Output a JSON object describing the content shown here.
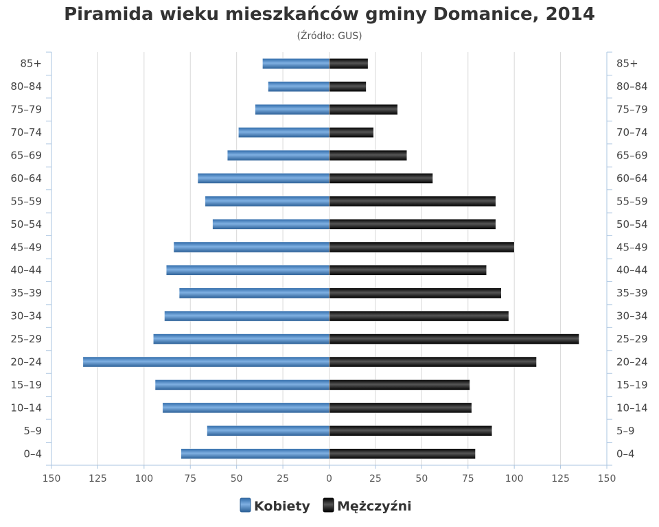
{
  "chart_data": {
    "type": "bar",
    "orientation": "horizontal-pyramid",
    "title": "Piramida wieku mieszkańców gminy Domanice, 2014",
    "subtitle": "(Źródło: GUS)",
    "categories": [
      "0–4",
      "5–9",
      "10–14",
      "15–19",
      "20–24",
      "25–29",
      "30–34",
      "35–39",
      "40–44",
      "45–49",
      "50–54",
      "55–59",
      "60–64",
      "65–69",
      "70–74",
      "75–79",
      "80–84",
      "85+"
    ],
    "series": [
      {
        "name": "Kobiety",
        "color": "#4a87c5",
        "values": [
          80,
          66,
          90,
          94,
          133,
          95,
          89,
          81,
          88,
          84,
          63,
          67,
          71,
          55,
          49,
          40,
          33,
          36
        ]
      },
      {
        "name": "Mężczyźni",
        "color": "#1a1a1a",
        "values": [
          79,
          88,
          77,
          76,
          112,
          135,
          97,
          93,
          85,
          100,
          90,
          90,
          56,
          42,
          24,
          37,
          20,
          21
        ]
      }
    ],
    "xlim": [
      -150,
      150
    ],
    "x_ticks": [
      "150",
      "125",
      "100",
      "75",
      "50",
      "25",
      "0",
      "25",
      "50",
      "75",
      "100",
      "125",
      "150"
    ],
    "grid": true,
    "legend_position": "bottom-center"
  }
}
